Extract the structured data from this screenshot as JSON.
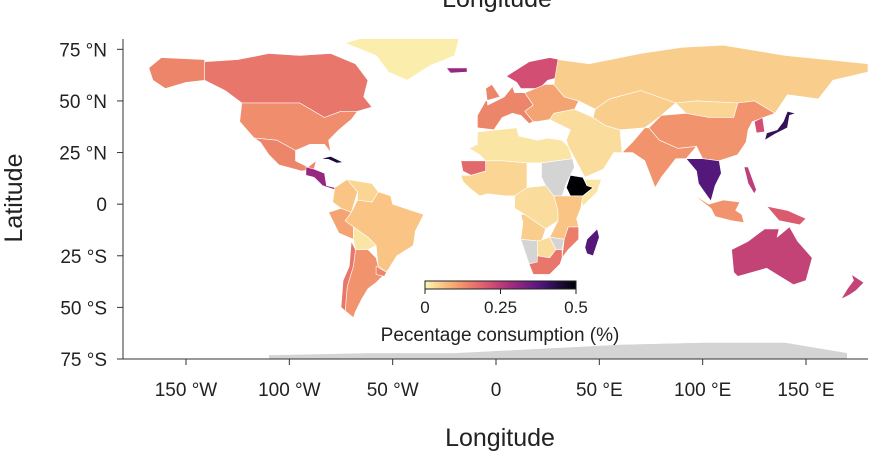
{
  "chart_data": {
    "type": "choropleth_map",
    "top_clipped_title": "Longitude",
    "xlabel": "Longitude",
    "ylabel": "Latitude",
    "x_ticks": [
      "150 °W",
      "100 °W",
      "50 °W",
      "0",
      "50 °E",
      "100 °E",
      "150 °E"
    ],
    "x_tick_values": [
      -150,
      -100,
      -50,
      0,
      50,
      100,
      150
    ],
    "y_ticks": [
      "75 °N",
      "50 °N",
      "25 °N",
      "0",
      "25 °S",
      "50 °S",
      "75 °S"
    ],
    "y_tick_values": [
      75,
      50,
      25,
      0,
      -25,
      -50,
      -75
    ],
    "xlim": [
      -180,
      180
    ],
    "ylim": [
      -75,
      80
    ],
    "colorbar": {
      "title": "Pecentage consumption (%)",
      "range": [
        0,
        0.5
      ],
      "ticks": [
        "0",
        "0.25",
        "0.5"
      ],
      "tick_values": [
        0,
        0.25,
        0.5
      ],
      "colormap": [
        "#fcf6b5",
        "#f9c886",
        "#f39b6d",
        "#e8716a",
        "#d14d73",
        "#a82f7d",
        "#7a2181",
        "#4c1677",
        "#1f0c3d",
        "#000004"
      ]
    },
    "no_data_color": "#d4d4d4",
    "regions": [
      {
        "name": "Canada",
        "value": 0.16
      },
      {
        "name": "Alaska",
        "value": 0.14
      },
      {
        "name": "United States",
        "value": 0.13
      },
      {
        "name": "Greenland",
        "value": 0.01
      },
      {
        "name": "Mexico",
        "value": 0.14
      },
      {
        "name": "Central America",
        "value": 0.3
      },
      {
        "name": "Cuba",
        "value": 0.45
      },
      {
        "name": "Brazil",
        "value": 0.06
      },
      {
        "name": "Colombia",
        "value": 0.06
      },
      {
        "name": "Venezuela",
        "value": 0.04
      },
      {
        "name": "Peru",
        "value": 0.1
      },
      {
        "name": "Bolivia",
        "value": 0.02
      },
      {
        "name": "Argentina",
        "value": 0.12
      },
      {
        "name": "Chile",
        "value": 0.16
      },
      {
        "name": "Uruguay",
        "value": 0.14
      },
      {
        "name": "Scandinavia",
        "value": 0.22
      },
      {
        "name": "Iceland",
        "value": 0.3
      },
      {
        "name": "Western Europe",
        "value": 0.14
      },
      {
        "name": "Eastern Europe",
        "value": 0.1
      },
      {
        "name": "Russia",
        "value": 0.05
      },
      {
        "name": "Central Asia",
        "value": 0.05
      },
      {
        "name": "Mongolia",
        "value": 0.04
      },
      {
        "name": "China",
        "value": 0.12
      },
      {
        "name": "Korea",
        "value": 0.22
      },
      {
        "name": "Japan",
        "value": 0.42
      },
      {
        "name": "Middle East",
        "value": 0.03
      },
      {
        "name": "India",
        "value": 0.12
      },
      {
        "name": "Southeast Asia",
        "value": 0.38
      },
      {
        "name": "Indonesia",
        "value": 0.12
      },
      {
        "name": "Philippines",
        "value": 0.25
      },
      {
        "name": "Papua New Guinea",
        "value": 0.2
      },
      {
        "name": "Australia",
        "value": 0.24
      },
      {
        "name": "New Zealand",
        "value": 0.24
      },
      {
        "name": "North Africa",
        "value": 0.02
      },
      {
        "name": "Mauritania",
        "value": 0.18
      },
      {
        "name": "West Africa",
        "value": 0.04
      },
      {
        "name": "Sudan",
        "value": null
      },
      {
        "name": "Ethiopia",
        "value": 0.5
      },
      {
        "name": "Somalia",
        "value": 0.02
      },
      {
        "name": "Central Africa",
        "value": 0.03
      },
      {
        "name": "East Africa",
        "value": 0.06
      },
      {
        "name": "Angola",
        "value": 0.05
      },
      {
        "name": "Namibia",
        "value": null
      },
      {
        "name": "Botswana",
        "value": 0.03
      },
      {
        "name": "Zimbabwe",
        "value": null
      },
      {
        "name": "Mozambique",
        "value": 0.15
      },
      {
        "name": "South Africa",
        "value": 0.16
      },
      {
        "name": "Madagascar",
        "value": 0.38
      },
      {
        "name": "Antarctica",
        "value": null
      }
    ]
  }
}
